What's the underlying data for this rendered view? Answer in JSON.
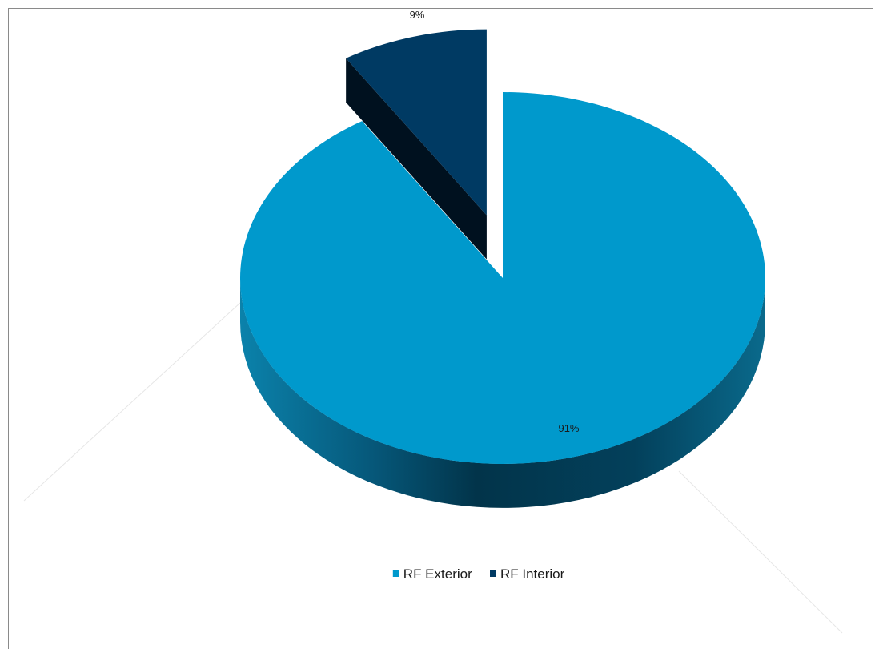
{
  "chart_data": {
    "type": "pie",
    "title": "",
    "slices": [
      {
        "label": "RF Exterior",
        "value": 91,
        "data_label": "91%",
        "color": "#0099CC",
        "side_color_dark": "#002d45",
        "side_color_light": "#0a6a8c"
      },
      {
        "label": "RF Interior",
        "value": 9,
        "data_label": "9%",
        "color": "#003A63",
        "side_color_dark": "#00111f",
        "side_color_light": "#001c33"
      }
    ],
    "style": "3d-exploded",
    "exploded_slice": "RF Interior",
    "legend_position": "bottom"
  }
}
